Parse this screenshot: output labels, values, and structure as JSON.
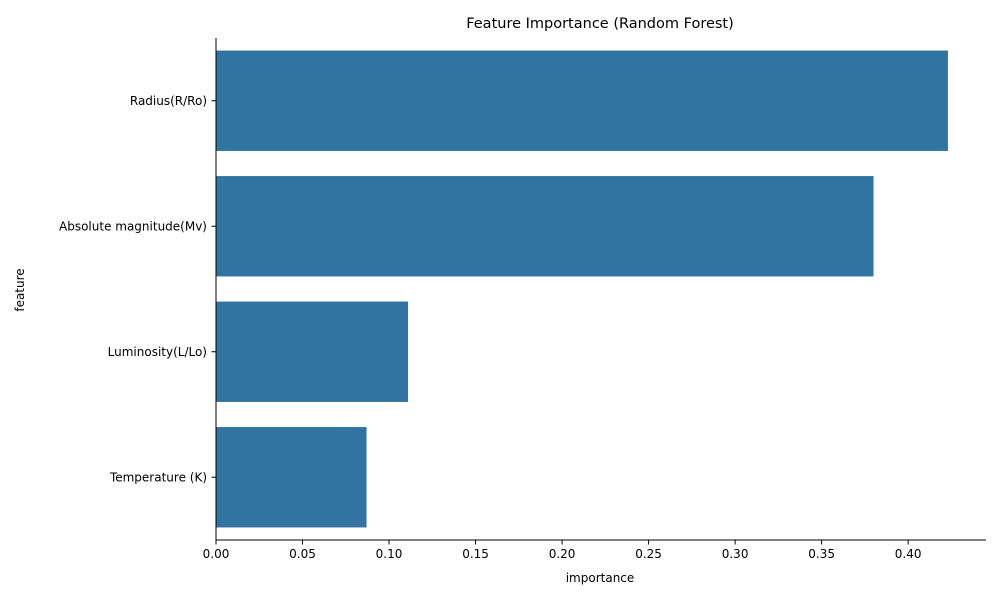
{
  "chart_data": {
    "type": "bar",
    "orientation": "horizontal",
    "title": "Feature Importance (Random Forest)",
    "xlabel": "importance",
    "ylabel": "feature",
    "categories": [
      "Radius(R/Ro)",
      "Absolute magnitude(Mv)",
      "Luminosity(L/Lo)",
      "Temperature (K)"
    ],
    "values": [
      0.423,
      0.38,
      0.111,
      0.087
    ],
    "xlim": [
      0,
      0.445
    ],
    "xticks": [
      0.0,
      0.05,
      0.1,
      0.15,
      0.2,
      0.25,
      0.3,
      0.35,
      0.4
    ],
    "xtick_labels": [
      "0.00",
      "0.05",
      "0.10",
      "0.15",
      "0.20",
      "0.25",
      "0.30",
      "0.35",
      "0.40"
    ],
    "grid": false,
    "legend": "none",
    "bar_color": "#3274a1"
  }
}
